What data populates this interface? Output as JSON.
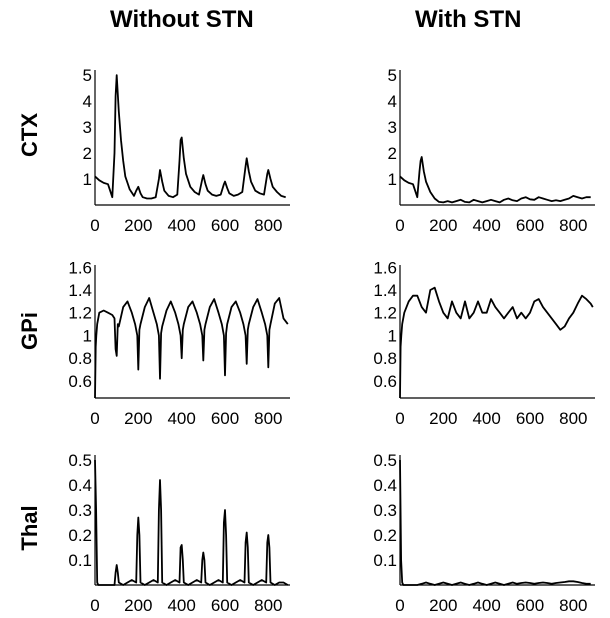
{
  "column_titles": [
    "Without STN",
    "With STN"
  ],
  "row_titles": [
    "CTX",
    "GPi",
    "Thal"
  ],
  "chart_data": [
    {
      "type": "line",
      "panel": "CTX / Without STN",
      "xticks": [
        0,
        200,
        400,
        600,
        800
      ],
      "yticks": [
        1,
        2,
        3,
        4,
        5
      ],
      "xlim": [
        0,
        900
      ],
      "ylim": [
        0,
        5.2
      ],
      "x": [
        0,
        20,
        40,
        60,
        80,
        90,
        95,
        100,
        110,
        120,
        130,
        140,
        160,
        180,
        190,
        200,
        210,
        220,
        240,
        260,
        280,
        295,
        300,
        310,
        320,
        340,
        360,
        380,
        390,
        395,
        400,
        410,
        420,
        440,
        460,
        480,
        495,
        500,
        510,
        520,
        540,
        560,
        580,
        595,
        600,
        610,
        620,
        640,
        660,
        680,
        695,
        700,
        710,
        720,
        740,
        760,
        780,
        795,
        800,
        810,
        820,
        840,
        860,
        880
      ],
      "y": [
        1.1,
        0.95,
        0.85,
        0.8,
        0.3,
        2.0,
        4.2,
        5.0,
        3.6,
        2.5,
        1.7,
        1.1,
        0.6,
        0.35,
        0.55,
        0.7,
        0.45,
        0.3,
        0.25,
        0.25,
        0.3,
        1.0,
        1.35,
        0.9,
        0.55,
        0.35,
        0.3,
        0.4,
        1.7,
        2.5,
        2.6,
        1.8,
        1.2,
        0.7,
        0.5,
        0.4,
        1.0,
        1.15,
        0.8,
        0.55,
        0.4,
        0.35,
        0.4,
        0.8,
        0.9,
        0.65,
        0.45,
        0.35,
        0.4,
        0.5,
        1.5,
        1.8,
        1.3,
        0.9,
        0.55,
        0.45,
        0.4,
        1.2,
        1.35,
        1.0,
        0.7,
        0.5,
        0.35,
        0.3
      ]
    },
    {
      "type": "line",
      "panel": "CTX / With STN",
      "xticks": [
        0,
        200,
        400,
        600,
        800
      ],
      "yticks": [
        1,
        2,
        3,
        4,
        5
      ],
      "xlim": [
        0,
        900
      ],
      "ylim": [
        0,
        5.2
      ],
      "x": [
        0,
        20,
        40,
        60,
        80,
        90,
        95,
        100,
        110,
        120,
        140,
        160,
        180,
        200,
        220,
        240,
        260,
        280,
        300,
        320,
        340,
        360,
        380,
        400,
        420,
        440,
        460,
        480,
        500,
        520,
        540,
        560,
        580,
        600,
        620,
        640,
        660,
        680,
        700,
        720,
        740,
        760,
        780,
        800,
        820,
        840,
        860,
        880
      ],
      "y": [
        1.1,
        0.95,
        0.85,
        0.8,
        0.3,
        1.3,
        1.7,
        1.85,
        1.3,
        0.9,
        0.5,
        0.25,
        0.12,
        0.1,
        0.15,
        0.1,
        0.15,
        0.2,
        0.12,
        0.1,
        0.2,
        0.15,
        0.1,
        0.15,
        0.2,
        0.15,
        0.1,
        0.2,
        0.25,
        0.18,
        0.15,
        0.25,
        0.3,
        0.22,
        0.2,
        0.3,
        0.25,
        0.2,
        0.15,
        0.18,
        0.15,
        0.2,
        0.25,
        0.35,
        0.3,
        0.25,
        0.3,
        0.3
      ]
    },
    {
      "type": "line",
      "panel": "GPi / Without STN",
      "xticks": [
        0,
        200,
        400,
        600,
        800
      ],
      "yticks": [
        0.6,
        0.8,
        1,
        1.2,
        1.4,
        1.6
      ],
      "xlim": [
        0,
        900
      ],
      "ylim": [
        0.45,
        1.62
      ],
      "x": [
        0,
        3,
        6,
        10,
        20,
        40,
        60,
        80,
        90,
        95,
        100,
        105,
        110,
        130,
        150,
        170,
        185,
        195,
        200,
        205,
        210,
        230,
        250,
        270,
        285,
        295,
        300,
        305,
        310,
        330,
        350,
        370,
        385,
        395,
        400,
        405,
        410,
        430,
        450,
        470,
        485,
        495,
        500,
        505,
        510,
        530,
        550,
        570,
        585,
        595,
        600,
        605,
        610,
        630,
        650,
        670,
        685,
        695,
        700,
        705,
        710,
        730,
        750,
        770,
        785,
        795,
        800,
        805,
        810,
        830,
        850,
        870,
        890
      ],
      "y": [
        0.45,
        0.9,
        1.0,
        1.1,
        1.2,
        1.22,
        1.2,
        1.18,
        1.15,
        0.88,
        0.82,
        1.1,
        1.08,
        1.25,
        1.3,
        1.2,
        1.1,
        1.0,
        0.7,
        1.05,
        1.1,
        1.25,
        1.33,
        1.2,
        1.1,
        1.0,
        0.62,
        1.02,
        1.08,
        1.22,
        1.3,
        1.2,
        1.1,
        1.0,
        0.8,
        1.05,
        1.1,
        1.25,
        1.3,
        1.2,
        1.1,
        1.0,
        0.78,
        1.05,
        1.1,
        1.25,
        1.32,
        1.2,
        1.1,
        1.0,
        0.65,
        1.02,
        1.1,
        1.25,
        1.3,
        1.2,
        1.1,
        1.0,
        0.75,
        1.05,
        1.1,
        1.25,
        1.32,
        1.2,
        1.1,
        1.0,
        0.72,
        1.05,
        1.1,
        1.28,
        1.33,
        1.15,
        1.1
      ]
    },
    {
      "type": "line",
      "panel": "GPi / With STN",
      "xticks": [
        0,
        200,
        400,
        600,
        800
      ],
      "yticks": [
        0.6,
        0.8,
        1,
        1.2,
        1.4,
        1.6
      ],
      "xlim": [
        0,
        900
      ],
      "ylim": [
        0.45,
        1.62
      ],
      "x": [
        0,
        3,
        6,
        10,
        20,
        40,
        60,
        80,
        100,
        120,
        140,
        160,
        180,
        200,
        220,
        240,
        260,
        280,
        300,
        320,
        340,
        360,
        380,
        400,
        420,
        440,
        460,
        480,
        500,
        520,
        540,
        560,
        580,
        600,
        620,
        640,
        660,
        680,
        700,
        720,
        740,
        760,
        780,
        800,
        820,
        840,
        860,
        880,
        890
      ],
      "y": [
        0.45,
        0.9,
        1.0,
        1.1,
        1.2,
        1.3,
        1.35,
        1.35,
        1.25,
        1.2,
        1.4,
        1.42,
        1.3,
        1.2,
        1.15,
        1.3,
        1.2,
        1.15,
        1.3,
        1.15,
        1.2,
        1.3,
        1.2,
        1.2,
        1.32,
        1.25,
        1.2,
        1.15,
        1.2,
        1.25,
        1.15,
        1.2,
        1.15,
        1.2,
        1.3,
        1.32,
        1.25,
        1.2,
        1.15,
        1.1,
        1.05,
        1.08,
        1.15,
        1.2,
        1.28,
        1.35,
        1.32,
        1.28,
        1.25
      ]
    },
    {
      "type": "line",
      "panel": "Thal / Without STN",
      "xticks": [
        0,
        200,
        400,
        600,
        800
      ],
      "yticks": [
        0.1,
        0.2,
        0.3,
        0.4,
        0.5
      ],
      "xlim": [
        0,
        900
      ],
      "ylim": [
        0,
        0.52
      ],
      "x": [
        0,
        5,
        10,
        15,
        20,
        40,
        60,
        80,
        90,
        95,
        100,
        105,
        110,
        130,
        150,
        170,
        190,
        195,
        200,
        205,
        210,
        230,
        250,
        270,
        290,
        295,
        300,
        305,
        310,
        330,
        350,
        370,
        390,
        395,
        400,
        405,
        410,
        430,
        450,
        470,
        490,
        495,
        500,
        505,
        510,
        530,
        550,
        570,
        590,
        595,
        600,
        605,
        610,
        630,
        650,
        670,
        690,
        695,
        700,
        705,
        710,
        730,
        750,
        770,
        790,
        795,
        800,
        805,
        810,
        830,
        850,
        870,
        890
      ],
      "y": [
        0.5,
        0.3,
        0.01,
        0.0,
        0.0,
        0.0,
        0.0,
        0.0,
        0.0,
        0.05,
        0.08,
        0.05,
        0.01,
        0.0,
        0.01,
        0.02,
        0.01,
        0.2,
        0.27,
        0.2,
        0.01,
        0.0,
        0.01,
        0.02,
        0.01,
        0.3,
        0.42,
        0.3,
        0.01,
        0.0,
        0.01,
        0.02,
        0.01,
        0.15,
        0.16,
        0.1,
        0.01,
        0.0,
        0.01,
        0.02,
        0.01,
        0.1,
        0.13,
        0.1,
        0.01,
        0.0,
        0.01,
        0.02,
        0.01,
        0.25,
        0.3,
        0.2,
        0.01,
        0.0,
        0.01,
        0.02,
        0.01,
        0.17,
        0.21,
        0.15,
        0.01,
        0.0,
        0.01,
        0.02,
        0.01,
        0.17,
        0.2,
        0.15,
        0.01,
        0.0,
        0.01,
        0.01,
        0.0
      ]
    },
    {
      "type": "line",
      "panel": "Thal / With STN",
      "xticks": [
        0,
        200,
        400,
        600,
        800
      ],
      "yticks": [
        0.1,
        0.2,
        0.3,
        0.4,
        0.5
      ],
      "xlim": [
        0,
        900
      ],
      "ylim": [
        0,
        0.52
      ],
      "x": [
        0,
        5,
        10,
        15,
        20,
        40,
        60,
        80,
        100,
        120,
        140,
        160,
        180,
        200,
        220,
        240,
        260,
        280,
        300,
        320,
        340,
        360,
        380,
        400,
        420,
        440,
        460,
        480,
        500,
        520,
        540,
        560,
        580,
        600,
        620,
        640,
        660,
        680,
        700,
        720,
        740,
        760,
        780,
        800,
        820,
        840,
        860,
        880
      ],
      "y": [
        0.5,
        0.1,
        0.01,
        0.0,
        0.0,
        0.0,
        0.0,
        0.0,
        0.005,
        0.01,
        0.005,
        0.0,
        0.005,
        0.01,
        0.005,
        0.0,
        0.005,
        0.01,
        0.005,
        0.0,
        0.005,
        0.01,
        0.005,
        0.0,
        0.005,
        0.01,
        0.005,
        0.0,
        0.005,
        0.01,
        0.005,
        0.008,
        0.01,
        0.008,
        0.005,
        0.008,
        0.01,
        0.008,
        0.005,
        0.008,
        0.01,
        0.012,
        0.015,
        0.015,
        0.012,
        0.008,
        0.005,
        0.005
      ]
    }
  ]
}
